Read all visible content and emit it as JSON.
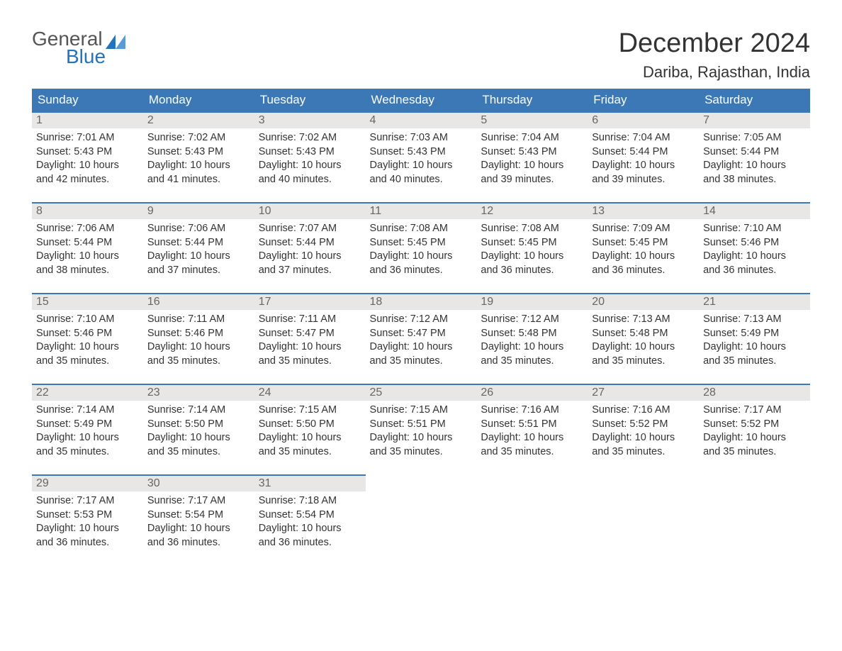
{
  "logo": {
    "text_general": "General",
    "text_blue": "Blue"
  },
  "title": "December 2024",
  "location": "Dariba, Rajasthan, India",
  "colors": {
    "header_bg": "#3b78b5",
    "header_text": "#ffffff",
    "daynum_bg": "#e9e6e6",
    "daynum_border": "#3b78b5",
    "logo_blue": "#2174bd"
  },
  "day_headers": [
    "Sunday",
    "Monday",
    "Tuesday",
    "Wednesday",
    "Thursday",
    "Friday",
    "Saturday"
  ],
  "weeks": [
    [
      {
        "n": "1",
        "sr": "7:01 AM",
        "ss": "5:43 PM",
        "dl": "10 hours and 42 minutes."
      },
      {
        "n": "2",
        "sr": "7:02 AM",
        "ss": "5:43 PM",
        "dl": "10 hours and 41 minutes."
      },
      {
        "n": "3",
        "sr": "7:02 AM",
        "ss": "5:43 PM",
        "dl": "10 hours and 40 minutes."
      },
      {
        "n": "4",
        "sr": "7:03 AM",
        "ss": "5:43 PM",
        "dl": "10 hours and 40 minutes."
      },
      {
        "n": "5",
        "sr": "7:04 AM",
        "ss": "5:43 PM",
        "dl": "10 hours and 39 minutes."
      },
      {
        "n": "6",
        "sr": "7:04 AM",
        "ss": "5:44 PM",
        "dl": "10 hours and 39 minutes."
      },
      {
        "n": "7",
        "sr": "7:05 AM",
        "ss": "5:44 PM",
        "dl": "10 hours and 38 minutes."
      }
    ],
    [
      {
        "n": "8",
        "sr": "7:06 AM",
        "ss": "5:44 PM",
        "dl": "10 hours and 38 minutes."
      },
      {
        "n": "9",
        "sr": "7:06 AM",
        "ss": "5:44 PM",
        "dl": "10 hours and 37 minutes."
      },
      {
        "n": "10",
        "sr": "7:07 AM",
        "ss": "5:44 PM",
        "dl": "10 hours and 37 minutes."
      },
      {
        "n": "11",
        "sr": "7:08 AM",
        "ss": "5:45 PM",
        "dl": "10 hours and 36 minutes."
      },
      {
        "n": "12",
        "sr": "7:08 AM",
        "ss": "5:45 PM",
        "dl": "10 hours and 36 minutes."
      },
      {
        "n": "13",
        "sr": "7:09 AM",
        "ss": "5:45 PM",
        "dl": "10 hours and 36 minutes."
      },
      {
        "n": "14",
        "sr": "7:10 AM",
        "ss": "5:46 PM",
        "dl": "10 hours and 36 minutes."
      }
    ],
    [
      {
        "n": "15",
        "sr": "7:10 AM",
        "ss": "5:46 PM",
        "dl": "10 hours and 35 minutes."
      },
      {
        "n": "16",
        "sr": "7:11 AM",
        "ss": "5:46 PM",
        "dl": "10 hours and 35 minutes."
      },
      {
        "n": "17",
        "sr": "7:11 AM",
        "ss": "5:47 PM",
        "dl": "10 hours and 35 minutes."
      },
      {
        "n": "18",
        "sr": "7:12 AM",
        "ss": "5:47 PM",
        "dl": "10 hours and 35 minutes."
      },
      {
        "n": "19",
        "sr": "7:12 AM",
        "ss": "5:48 PM",
        "dl": "10 hours and 35 minutes."
      },
      {
        "n": "20",
        "sr": "7:13 AM",
        "ss": "5:48 PM",
        "dl": "10 hours and 35 minutes."
      },
      {
        "n": "21",
        "sr": "7:13 AM",
        "ss": "5:49 PM",
        "dl": "10 hours and 35 minutes."
      }
    ],
    [
      {
        "n": "22",
        "sr": "7:14 AM",
        "ss": "5:49 PM",
        "dl": "10 hours and 35 minutes."
      },
      {
        "n": "23",
        "sr": "7:14 AM",
        "ss": "5:50 PM",
        "dl": "10 hours and 35 minutes."
      },
      {
        "n": "24",
        "sr": "7:15 AM",
        "ss": "5:50 PM",
        "dl": "10 hours and 35 minutes."
      },
      {
        "n": "25",
        "sr": "7:15 AM",
        "ss": "5:51 PM",
        "dl": "10 hours and 35 minutes."
      },
      {
        "n": "26",
        "sr": "7:16 AM",
        "ss": "5:51 PM",
        "dl": "10 hours and 35 minutes."
      },
      {
        "n": "27",
        "sr": "7:16 AM",
        "ss": "5:52 PM",
        "dl": "10 hours and 35 minutes."
      },
      {
        "n": "28",
        "sr": "7:17 AM",
        "ss": "5:52 PM",
        "dl": "10 hours and 35 minutes."
      }
    ],
    [
      {
        "n": "29",
        "sr": "7:17 AM",
        "ss": "5:53 PM",
        "dl": "10 hours and 36 minutes."
      },
      {
        "n": "30",
        "sr": "7:17 AM",
        "ss": "5:54 PM",
        "dl": "10 hours and 36 minutes."
      },
      {
        "n": "31",
        "sr": "7:18 AM",
        "ss": "5:54 PM",
        "dl": "10 hours and 36 minutes."
      },
      null,
      null,
      null,
      null
    ]
  ],
  "labels": {
    "sunrise": "Sunrise: ",
    "sunset": "Sunset: ",
    "daylight": "Daylight: "
  }
}
